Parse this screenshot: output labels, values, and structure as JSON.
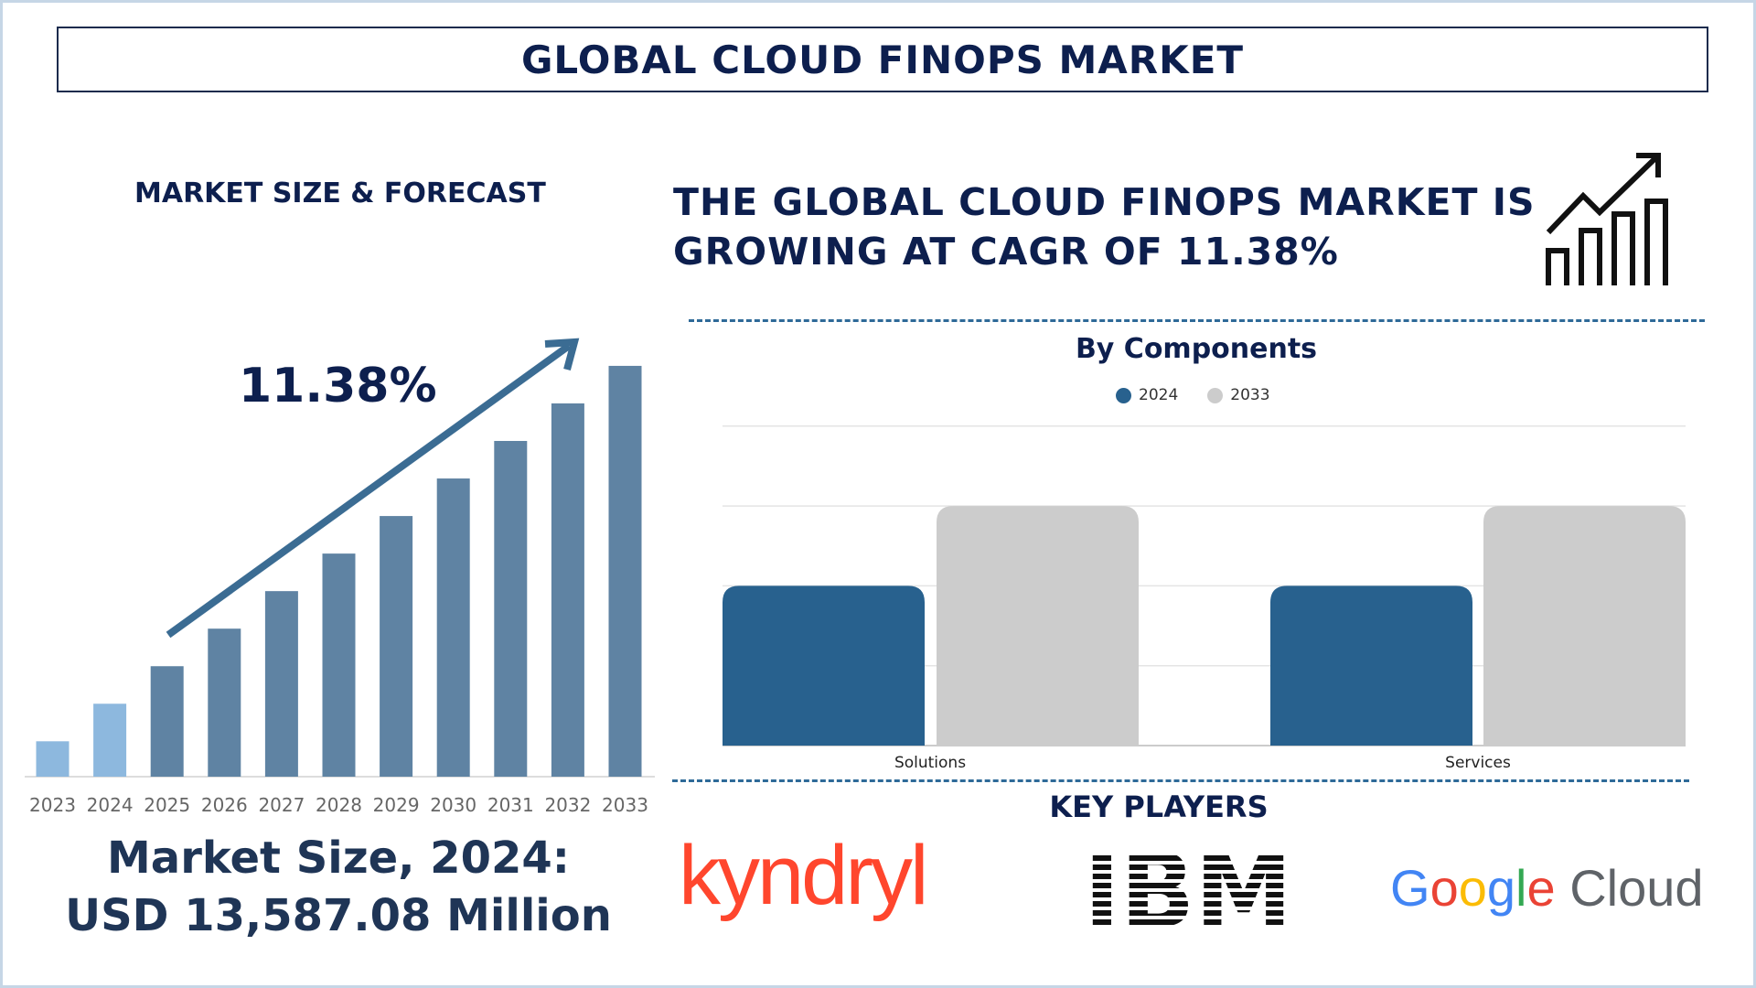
{
  "title": "GLOBAL CLOUD FINOPS MARKET",
  "left": {
    "subtitle": "MARKET SIZE & FORECAST",
    "cagr_label": "11.38%",
    "market_size_line1": "Market Size, 2024:",
    "market_size_line2": "USD 13,587.08 Million"
  },
  "headline": {
    "line1": "THE GLOBAL CLOUD FINOPS MARKET IS",
    "line2": "GROWING AT CAGR OF 11.38%",
    "icon": "growth-chart-icon"
  },
  "key_players": {
    "title": "KEY PLAYERS",
    "logos": [
      "kyndryl",
      "IBM",
      "Google Cloud"
    ]
  },
  "colors": {
    "navy": "#0d1f4e",
    "bar_history": "#8db8de",
    "bar_forecast": "#5f83a3",
    "arrow": "#3b6c93",
    "series_2024": "#28618e",
    "series_2033": "#cccccc"
  },
  "chart_data": [
    {
      "type": "bar",
      "title": "",
      "categories": [
        "2023",
        "2024",
        "2025",
        "2026",
        "2027",
        "2028",
        "2029",
        "2030",
        "2031",
        "2032",
        "2033"
      ],
      "values": [
        33,
        68,
        103,
        138,
        173,
        208,
        243,
        278,
        313,
        348,
        383
      ],
      "value_units": "relative (no axis printed)",
      "ylim": [
        0,
        400
      ],
      "grid": false,
      "annotation": "11.38%"
    },
    {
      "type": "bar",
      "title": "By Components",
      "categories": [
        "Solutions",
        "Services"
      ],
      "series": [
        {
          "name": "2024",
          "values": [
            2,
            2
          ]
        },
        {
          "name": "2033",
          "values": [
            3,
            3
          ]
        }
      ],
      "value_units": "relative gridline units (no axis labels printed)",
      "ylim": [
        0,
        4
      ],
      "grid": true,
      "legend": "top"
    }
  ]
}
